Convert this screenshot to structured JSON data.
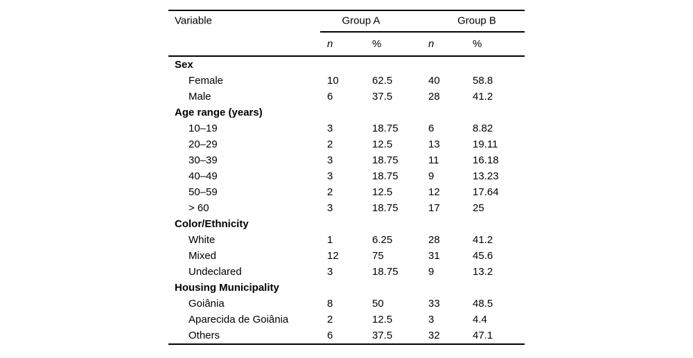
{
  "colors": {
    "background": "#ffffff",
    "text": "#000000",
    "rule": "#000000"
  },
  "table": {
    "head": {
      "variable": "Variable",
      "group_a": "Group A",
      "group_b": "Group B",
      "n": "n",
      "pct": "%"
    },
    "rows": [
      {
        "kind": "group",
        "label": "Sex"
      },
      {
        "kind": "item",
        "label": "Female",
        "cells": [
          "10",
          "62.5",
          "40",
          "58.8"
        ]
      },
      {
        "kind": "item",
        "label": "Male",
        "cells": [
          "6",
          "37.5",
          "28",
          "41.2"
        ]
      },
      {
        "kind": "group",
        "label": "Age range (years)"
      },
      {
        "kind": "item",
        "label": "10–19",
        "cells": [
          "3",
          "18.75",
          "6",
          "8.82"
        ]
      },
      {
        "kind": "item",
        "label": "20–29",
        "cells": [
          "2",
          "12.5",
          "13",
          "19.11"
        ]
      },
      {
        "kind": "item",
        "label": "30–39",
        "cells": [
          "3",
          "18.75",
          "11",
          "16.18"
        ]
      },
      {
        "kind": "item",
        "label": "40–49",
        "cells": [
          "3",
          "18.75",
          "9",
          "13.23"
        ]
      },
      {
        "kind": "item",
        "label": "50–59",
        "cells": [
          "2",
          "12.5",
          "12",
          "17.64"
        ]
      },
      {
        "kind": "item",
        "label": "> 60",
        "cells": [
          "3",
          "18.75",
          "17",
          "25"
        ]
      },
      {
        "kind": "group",
        "label": "Color/Ethnicity"
      },
      {
        "kind": "item",
        "label": "White",
        "cells": [
          "1",
          "6.25",
          "28",
          "41.2"
        ]
      },
      {
        "kind": "item",
        "label": "Mixed",
        "cells": [
          "12",
          "75",
          "31",
          "45.6"
        ]
      },
      {
        "kind": "item",
        "label": "Undeclared",
        "cells": [
          "3",
          "18.75",
          "9",
          "13.2"
        ]
      },
      {
        "kind": "group",
        "label": "Housing Municipality"
      },
      {
        "kind": "item",
        "label": "Goiânia",
        "cells": [
          "8",
          "50",
          "33",
          "48.5"
        ]
      },
      {
        "kind": "item",
        "label": "Aparecida de Goiânia",
        "cells": [
          "2",
          "12.5",
          "3",
          "4.4"
        ]
      },
      {
        "kind": "item",
        "label": "Others",
        "cells": [
          "6",
          "37.5",
          "32",
          "47.1"
        ]
      }
    ]
  },
  "chart_data": {
    "type": "table",
    "columns": [
      "Variable",
      "Group A n",
      "Group A %",
      "Group B n",
      "Group B %"
    ],
    "rows": [
      [
        "Sex",
        "",
        "",
        "",
        ""
      ],
      [
        "Female",
        "10",
        "62.5",
        "40",
        "58.8"
      ],
      [
        "Male",
        "6",
        "37.5",
        "28",
        "41.2"
      ],
      [
        "Age range (years)",
        "",
        "",
        "",
        ""
      ],
      [
        "10–19",
        "3",
        "18.75",
        "6",
        "8.82"
      ],
      [
        "20–29",
        "2",
        "12.5",
        "13",
        "19.11"
      ],
      [
        "30–39",
        "3",
        "18.75",
        "11",
        "16.18"
      ],
      [
        "40–49",
        "3",
        "18.75",
        "9",
        "13.23"
      ],
      [
        "50–59",
        "2",
        "12.5",
        "12",
        "17.64"
      ],
      [
        "> 60",
        "3",
        "18.75",
        "17",
        "25"
      ],
      [
        "Color/Ethnicity",
        "",
        "",
        "",
        ""
      ],
      [
        "White",
        "1",
        "6.25",
        "28",
        "41.2"
      ],
      [
        "Mixed",
        "12",
        "75",
        "31",
        "45.6"
      ],
      [
        "Undeclared",
        "3",
        "18.75",
        "9",
        "13.2"
      ],
      [
        "Housing Municipality",
        "",
        "",
        "",
        ""
      ],
      [
        "Goiânia",
        "8",
        "50",
        "33",
        "48.5"
      ],
      [
        "Aparecida de Goiânia",
        "2",
        "12.5",
        "3",
        "4.4"
      ],
      [
        "Others",
        "6",
        "37.5",
        "32",
        "47.1"
      ]
    ]
  }
}
